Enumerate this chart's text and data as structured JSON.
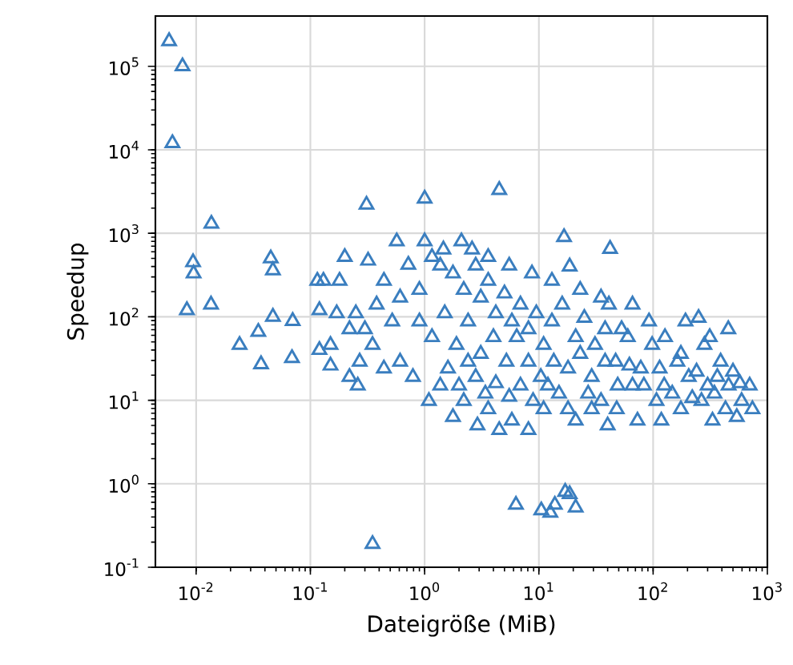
{
  "chart_data": {
    "type": "scatter",
    "xlabel": "Dateigröße (MiB)",
    "ylabel": "Speedup",
    "log": "xy",
    "grid": true,
    "marker": "triangle",
    "xlim": [
      0.0044,
      1000
    ],
    "ylim": [
      0.1,
      400000
    ],
    "xticks": [
      {
        "value": 0.01,
        "label": "10$^{-2}$"
      },
      {
        "value": 0.1,
        "label": "10$^{-1}$"
      },
      {
        "value": 1,
        "label": "10$^{0}$"
      },
      {
        "value": 10,
        "label": "10$^{1}$"
      },
      {
        "value": 100,
        "label": "10$^{2}$"
      },
      {
        "value": 1000,
        "label": "10$^{3}$"
      }
    ],
    "yticks": [
      {
        "value": 0.1,
        "label": "10$^{-1}$"
      },
      {
        "value": 1,
        "label": "10$^{0}$"
      },
      {
        "value": 10,
        "label": "10$^{1}$"
      },
      {
        "value": 100,
        "label": "10$^{2}$"
      },
      {
        "value": 1000,
        "label": "10$^{3}$"
      },
      {
        "value": 10000,
        "label": "10$^{4}$"
      },
      {
        "value": 100000,
        "label": "10$^{5}$"
      }
    ],
    "series": [
      {
        "color": "#3a7ebf",
        "x": [
          0.0058,
          0.0076,
          0.0062,
          0.0136,
          0.31,
          1.0,
          4.5,
          16.6,
          18.6,
          42,
          0.35,
          6.3,
          10.5,
          13.8,
          18.6,
          21,
          12.6,
          17,
          0.0094,
          0.0095,
          0.0083,
          0.0135,
          0.045,
          0.047,
          0.024,
          0.035,
          0.037,
          0.047,
          0.07,
          0.069,
          0.12,
          0.115,
          0.12,
          0.15,
          0.22,
          0.26,
          0.18,
          0.13,
          0.2,
          0.25,
          0.32,
          0.44,
          0.57,
          0.72,
          0.9,
          1.16,
          1.46,
          1.77,
          2.2,
          2.8,
          3.1,
          3.6,
          4.2,
          5.0,
          5.8,
          6.9,
          8.1,
          9.5,
          11,
          13,
          16,
          21,
          25,
          31,
          38,
          47,
          60,
          78,
          98,
          125,
          163,
          192,
          240,
          281,
          344,
          390,
          458,
          540,
          595,
          500,
          331,
          175,
          107,
          66,
          40,
          29,
          21,
          15,
          11,
          8.1,
          5.8,
          4.5,
          3.6,
          2.9,
          2.2,
          1.77,
          1.37,
          1.09,
          0.79,
          0.61,
          0.44,
          0.35,
          0.27,
          0.22,
          0.17,
          0.15,
          0.9,
          1.16,
          1.5,
          1.9,
          2.4,
          3.1,
          4.0,
          5.2,
          6.4,
          8.1,
          10.4,
          13.5,
          18,
          23,
          29,
          38,
          49,
          62,
          83,
          114,
          147,
          205,
          265,
          365,
          430,
          575,
          250,
          455,
          66,
          92,
          35,
          23,
          13,
          8.7,
          5.5,
          3.6,
          2.6,
          2.1,
          1.37,
          1.0,
          0.61,
          0.52,
          0.38,
          0.3,
          41,
          53,
          127,
          175,
          313,
          700,
          740,
          2.4,
          1.6,
          2.0,
          2.8,
          3.4,
          4.2,
          5.5,
          6.9,
          8.9,
          12,
          18,
          27,
          35,
          48,
          73,
          118,
          220,
          300
        ],
        "values": [
          200000,
          100000,
          12000,
          1300,
          2200,
          2600,
          3300,
          900,
          400,
          650,
          0.19,
          0.56,
          0.48,
          0.56,
          0.75,
          0.52,
          0.45,
          0.8,
          450,
          330,
          120,
          140,
          500,
          360,
          46,
          66,
          27,
          100,
          89,
          32,
          120,
          270,
          40,
          26,
          19,
          15,
          270,
          270,
          520,
          110,
          470,
          270,
          800,
          420,
          210,
          520,
          640,
          330,
          210,
          410,
          170,
          270,
          110,
          190,
          88,
          140,
          71,
          110,
          46,
          88,
          140,
          57,
          97,
          46,
          71,
          29,
          57,
          24,
          46,
          15,
          29,
          88,
          22,
          46,
          12,
          29,
          15,
          6.3,
          9.8,
          22,
          5.7,
          7.8,
          9.8,
          15,
          5.0,
          7.8,
          5.7,
          12,
          7.8,
          4.4,
          5.7,
          4.4,
          7.8,
          5.0,
          9.8,
          6.3,
          15,
          9.8,
          19,
          29,
          24,
          46,
          29,
          71,
          110,
          46,
          88,
          57,
          110,
          46,
          88,
          36,
          57,
          29,
          57,
          29,
          19,
          29,
          24,
          36,
          19,
          29,
          15,
          26,
          15,
          24,
          12,
          19,
          9.8,
          19,
          7.8,
          16,
          97,
          71,
          140,
          88,
          170,
          210,
          270,
          330,
          410,
          520,
          640,
          800,
          410,
          800,
          170,
          88,
          140,
          71,
          140,
          71,
          57,
          36,
          57,
          15,
          7.8,
          29,
          24,
          15,
          19,
          12,
          16,
          11,
          15,
          9.8,
          15,
          7.8,
          12,
          9.8,
          7.8,
          5.7,
          5.7,
          10.6,
          15
        ]
      }
    ]
  }
}
